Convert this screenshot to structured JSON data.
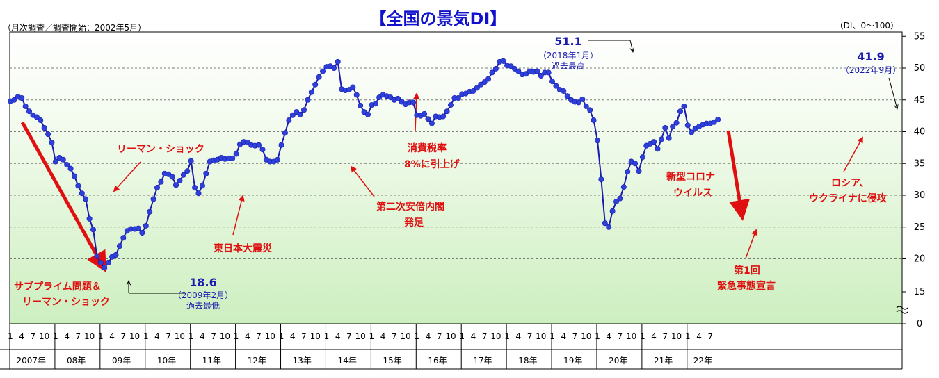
{
  "page": {
    "title": "【全国の景気DI】",
    "survey_note": "（月次調査／調査開始：2002年5月）",
    "unit_note": "（DI、0〜100）"
  },
  "chart_data": {
    "type": "line",
    "title": "【全国の景気DI】",
    "ylim": [
      0,
      55
    ],
    "y_ticks": [
      0,
      15,
      20,
      25,
      30,
      35,
      40,
      45,
      50,
      55
    ],
    "axis_break": "between 0 and 15",
    "grid": true,
    "background": "gradient white to light green",
    "line_color": "#1a1ab0",
    "marker_color": "#2d40d8",
    "month_tick_labels": [
      "1",
      "4",
      "7",
      "10"
    ],
    "year_labels": [
      "2007年",
      "08年",
      "09年",
      "10年",
      "11年",
      "12年",
      "13年",
      "14年",
      "15年",
      "16年",
      "17年",
      "18年",
      "19年",
      "20年",
      "21年",
      "22年"
    ],
    "x_start": "2007-01",
    "x_end": "2022-09",
    "series": [
      {
        "values": [
          44.8,
          45.0,
          45.5,
          45.3,
          44.0,
          43.2,
          42.6,
          42.3,
          41.8,
          40.6,
          39.6,
          38.3,
          35.3,
          35.9,
          35.6,
          34.8,
          34.2,
          33.0,
          31.5,
          30.3,
          29.4,
          26.3,
          24.6,
          20.4,
          19.4,
          18.6,
          19.4,
          20.3,
          20.6,
          22.0,
          23.3,
          24.4,
          24.7,
          24.7,
          24.8,
          24.1,
          25.2,
          27.4,
          29.4,
          31.2,
          32.1,
          33.4,
          33.3,
          32.9,
          31.6,
          32.3,
          33.2,
          33.8,
          35.4,
          31.2,
          30.3,
          31.5,
          33.4,
          35.3,
          35.5,
          35.6,
          35.9,
          35.7,
          35.8,
          35.8,
          36.5,
          38.0,
          38.4,
          38.3,
          37.9,
          37.8,
          37.9,
          37.2,
          35.6,
          35.3,
          35.3,
          35.6,
          37.9,
          39.8,
          41.8,
          42.6,
          43.1,
          42.7,
          43.4,
          45.0,
          46.2,
          47.4,
          48.6,
          49.5,
          50.2,
          50.3,
          50.0,
          51.0,
          46.7,
          46.5,
          46.6,
          47.0,
          45.8,
          44.1,
          43.1,
          42.7,
          44.2,
          44.4,
          45.4,
          45.8,
          45.6,
          45.4,
          45.0,
          45.2,
          44.7,
          44.3,
          44.6,
          44.6,
          42.6,
          42.5,
          42.8,
          42.0,
          41.3,
          42.4,
          42.3,
          42.4,
          43.2,
          44.2,
          45.3,
          45.3,
          45.9,
          46.0,
          46.3,
          46.4,
          46.9,
          47.4,
          47.8,
          48.3,
          49.3,
          49.9,
          51.0,
          51.1,
          50.4,
          50.3,
          49.9,
          49.5,
          49.0,
          49.1,
          49.5,
          49.4,
          49.5,
          48.8,
          49.3,
          49.3,
          47.9,
          47.2,
          46.6,
          46.4,
          45.6,
          45.0,
          44.7,
          44.6,
          45.1,
          44.0,
          43.4,
          41.8,
          38.6,
          32.5,
          25.6,
          25.0,
          27.5,
          29.0,
          29.5,
          31.3,
          33.7,
          35.3,
          35.0,
          33.8,
          36.0,
          37.8,
          38.1,
          38.4,
          37.3,
          38.8,
          40.6,
          39.0,
          40.8,
          41.4,
          43.2,
          44.0,
          41.0,
          39.9,
          40.5,
          40.8,
          41.1,
          41.3,
          41.3,
          41.5,
          41.9
        ]
      }
    ],
    "annotations": [
      {
        "name": "subprime",
        "lines": [
          "サブプライム問題＆",
          "リーマン・ショック"
        ]
      },
      {
        "name": "lehman",
        "lines": [
          "リーマン・ショック"
        ]
      },
      {
        "name": "earthquake",
        "lines": [
          "東日本大震災"
        ]
      },
      {
        "name": "abe",
        "lines": [
          "第二次安倍内閣",
          "発足"
        ]
      },
      {
        "name": "tax",
        "lines": [
          "消費税率",
          "8%に引上げ"
        ]
      },
      {
        "name": "corona",
        "lines": [
          "新型コロナ",
          "ウイルス"
        ]
      },
      {
        "name": "emergency",
        "lines": [
          "第1回",
          "緊急事態宣言"
        ]
      },
      {
        "name": "russia",
        "lines": [
          "ロシア、",
          "ウクライナに侵攻"
        ]
      },
      {
        "name": "low",
        "value": "18.6",
        "sub": [
          "（2009年2月）",
          "過去最低"
        ]
      },
      {
        "name": "high",
        "value": "51.1",
        "sub": [
          "（2018年1月）",
          "過去最高"
        ]
      },
      {
        "name": "latest",
        "value": "41.9",
        "sub": [
          "（2022年9月）"
        ]
      }
    ]
  }
}
